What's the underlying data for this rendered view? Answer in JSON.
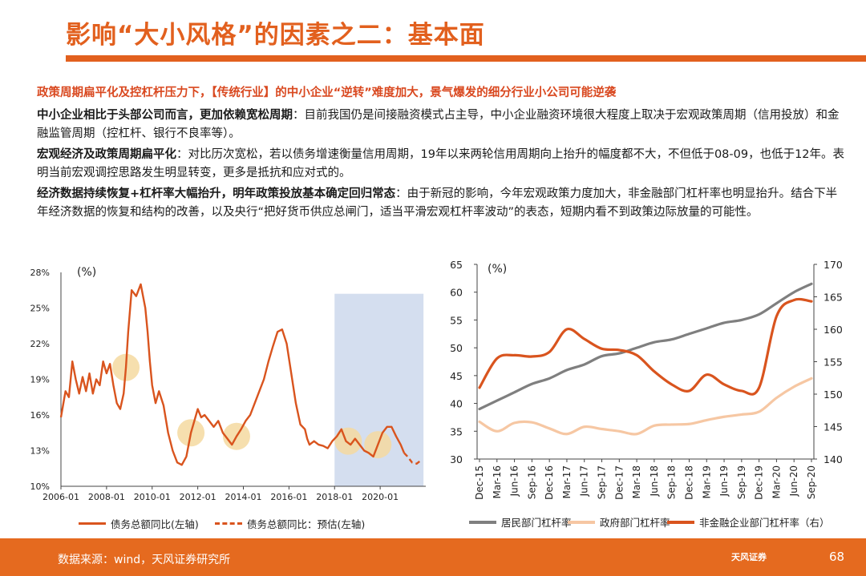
{
  "page": {
    "title": "影响“大小风格”的因素之二：基本面",
    "subtitle": "政策周期扁平化及控杠杆压力下，【传统行业】的中小企业“逆转”难度加大，景气爆发的细分行业小公司可能逆袭",
    "paragraphs": [
      {
        "bold": "中小企业相比于头部公司而言，更加依赖宽松周期",
        "text": "：目前我国仍是间接融资模式占主导，中小企业融资环境很大程度上取决于宏观政策周期（信用投放）和金融监管周期（控杠杆、银行不良率等）。"
      },
      {
        "bold": "宏观经济及政策周期扁平化",
        "text": "：对比历次宽松，若以债务增速衡量信用周期，19年以来两轮信用周期向上抬升的幅度都不大，不但低于08-09，也低于12年。表明当前宏观调控思路发生明显转变，更多是抵抗和应对式的。"
      },
      {
        "bold": "经济数据持续恢复+杠杆率大幅抬升，明年政策投放基本确定回归常态",
        "text": "：由于新冠的影响，今年宏观政策力度加大，非金融部门杠杆率也明显抬升。结合下半年经济数据的恢复和结构的改善，以及央行“把好货币供应总闸门，适当平滑宏观杠杆率波动”的表态，短期内看不到政策边际放量的可能性。"
      }
    ],
    "footer_source": "数据来源：wind，天风证券研究所",
    "footer_logo": "天风证券",
    "page_number": "68"
  },
  "chart_data": [
    {
      "type": "line",
      "unit_label": "(%)",
      "ylim": [
        10,
        28
      ],
      "yticks": [
        "28%",
        "25%",
        "22%",
        "19%",
        "16%",
        "13%",
        "10%"
      ],
      "xticks": [
        "2006-01",
        "2008-01",
        "2010-01",
        "2012-01",
        "2014-01",
        "2016-01",
        "2018-01",
        "2020-01"
      ],
      "legend": [
        "债务总额同比(左轴)",
        "债务总额同比：预估(左轴)"
      ],
      "colors": {
        "actual": "#d9541e",
        "highlight": "#f5d9a0",
        "shade": "#c6d3ea"
      },
      "series": [
        {
          "name": "债务总额同比(左轴)",
          "x": [
            2006.0,
            2006.2,
            2006.35,
            2006.5,
            2006.65,
            2006.8,
            2006.95,
            2007.1,
            2007.25,
            2007.4,
            2007.55,
            2007.7,
            2007.85,
            2008.0,
            2008.15,
            2008.3,
            2008.45,
            2008.6,
            2008.75,
            2008.85,
            2008.95,
            2009.1,
            2009.3,
            2009.5,
            2009.6,
            2009.7,
            2009.8,
            2009.9,
            2010.0,
            2010.15,
            2010.3,
            2010.5,
            2010.7,
            2010.9,
            2011.1,
            2011.3,
            2011.5,
            2011.7,
            2011.85,
            2012.0,
            2012.15,
            2012.3,
            2012.5,
            2012.7,
            2012.9,
            2013.1,
            2013.3,
            2013.5,
            2013.7,
            2013.9,
            2014.1,
            2014.3,
            2014.5,
            2014.7,
            2014.9,
            2015.1,
            2015.3,
            2015.5,
            2015.7,
            2015.9,
            2016.1,
            2016.3,
            2016.5,
            2016.7,
            2016.8,
            2016.9,
            2017.1,
            2017.3,
            2017.5,
            2017.7,
            2017.9,
            2018.1,
            2018.3,
            2018.5,
            2018.7,
            2018.9,
            2019.1,
            2019.3,
            2019.5,
            2019.7,
            2019.9,
            2020.1,
            2020.3,
            2020.5,
            2020.7,
            2020.9,
            2021.05
          ],
          "y": [
            15.8,
            18.0,
            17.5,
            20.5,
            19.0,
            17.8,
            19.2,
            18.0,
            19.5,
            17.8,
            19.0,
            18.5,
            20.5,
            19.5,
            20.3,
            18.5,
            17.0,
            16.5,
            17.8,
            20.0,
            23.0,
            26.5,
            26.0,
            27.0,
            26.0,
            25.0,
            23.0,
            20.5,
            18.5,
            17.0,
            18.0,
            16.8,
            14.5,
            13.0,
            12.0,
            11.8,
            12.5,
            14.5,
            15.5,
            16.5,
            15.8,
            16.0,
            15.5,
            15.0,
            15.5,
            14.5,
            14.0,
            13.5,
            14.2,
            14.8,
            15.5,
            16.0,
            17.0,
            18.0,
            19.0,
            20.5,
            21.8,
            23.0,
            23.2,
            22.0,
            19.5,
            17.0,
            15.2,
            14.8,
            14.0,
            13.5,
            13.8,
            13.5,
            13.4,
            13.2,
            13.8,
            14.2,
            14.8,
            13.8,
            13.5,
            14.0,
            13.5,
            13.0,
            12.8,
            12.5,
            13.5,
            14.5,
            15.0,
            15.0,
            14.2,
            13.5,
            12.8
          ]
        },
        {
          "name": "债务总额同比：预估(左轴)",
          "x": [
            2021.05,
            2021.2,
            2021.4,
            2021.6,
            2021.8
          ],
          "y": [
            12.8,
            12.5,
            12.0,
            11.9,
            12.2
          ]
        }
      ],
      "highlights_x": [
        2008.85,
        2011.7,
        2013.7,
        2018.6,
        2019.9
      ],
      "shade_x": [
        2018.0,
        2021.9
      ]
    },
    {
      "type": "line",
      "unit_label": "(%)",
      "ylim_left": [
        30,
        65
      ],
      "ylim_right": [
        140,
        170
      ],
      "yticks_left": [
        "65",
        "60",
        "55",
        "50",
        "45",
        "40",
        "35",
        "30"
      ],
      "yticks_right": [
        "170",
        "165",
        "160",
        "155",
        "150",
        "145",
        "140"
      ],
      "categories": [
        "Dec-15",
        "Mar-16",
        "Jun-16",
        "Sep-16",
        "Dec-16",
        "Mar-17",
        "Jun-17",
        "Sep-17",
        "Dec-17",
        "Mar-18",
        "Jun-18",
        "Sep-18",
        "Dec-18",
        "Mar-19",
        "Jun-19",
        "Sep-19",
        "Dec-19",
        "Mar-20",
        "Jun-20",
        "Sep-20"
      ],
      "legend": [
        "居民部门杠杆率",
        "政府部门杠杆率",
        "非金融企业部门杠杆率（右）"
      ],
      "colors": {
        "household": "#7f7f7f",
        "government": "#f6c7a3",
        "corporate": "#d9541e"
      },
      "series": [
        {
          "name": "居民部门杠杆率",
          "axis": "left",
          "values": [
            39.0,
            40.5,
            42.0,
            43.5,
            44.5,
            46.0,
            47.0,
            48.5,
            49.0,
            50.0,
            51.0,
            51.5,
            52.5,
            53.5,
            54.5,
            55.0,
            56.0,
            58.0,
            60.0,
            61.5
          ]
        },
        {
          "name": "政府部门杠杆率",
          "axis": "left",
          "values": [
            36.7,
            35.0,
            36.5,
            36.6,
            35.5,
            34.5,
            35.8,
            35.4,
            35.0,
            34.5,
            36.0,
            36.2,
            36.3,
            37.0,
            37.6,
            38.0,
            38.5,
            41.0,
            43.0,
            44.5
          ]
        },
        {
          "name": "非金融企业部门杠杆率（右）",
          "axis": "right",
          "values": [
            151.0,
            155.5,
            156.0,
            155.8,
            156.5,
            160.0,
            158.5,
            157.0,
            156.8,
            156.0,
            153.5,
            151.5,
            150.5,
            153.0,
            151.5,
            150.5,
            151.0,
            162.0,
            164.5,
            164.3
          ]
        }
      ]
    }
  ]
}
